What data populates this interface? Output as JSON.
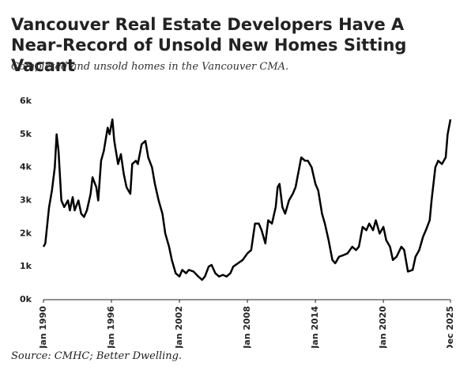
{
  "chart_data": {
    "type": "line",
    "title": "Vancouver Real Estate Developers Have A Near-Record of Unsold New Homes Sitting Vacant",
    "subtitle": "Completed and unsold homes in the Vancouver CMA.",
    "source": "Source: CMHC; Better Dwelling.",
    "color": "#000000",
    "x": [
      "Jan 1990",
      "Mar 1990",
      "Jul 1990",
      "Oct 1990",
      "Jan 1991",
      "Mar 1991",
      "May 1991",
      "Aug 1991",
      "Nov 1991",
      "Mar 1992",
      "May 1992",
      "Aug 1992",
      "Oct 1992",
      "Feb 1993",
      "May 1993",
      "Aug 1993",
      "Nov 1993",
      "Mar 1994",
      "May 1994",
      "Sep 1994",
      "Nov 1994",
      "Feb 1995",
      "May 1995",
      "Sep 1995",
      "Nov 1995",
      "Feb 1996",
      "Apr 1996",
      "Aug 1996",
      "Nov 1996",
      "Feb 1997",
      "May 1997",
      "Sep 1997",
      "Nov 1997",
      "Mar 1998",
      "May 1998",
      "Sep 1998",
      "Jan 1999",
      "Apr 1999",
      "Aug 1999",
      "Nov 1999",
      "Mar 2000",
      "Jul 2000",
      "Oct 2000",
      "Feb 2001",
      "May 2001",
      "Sep 2001",
      "Jan 2002",
      "Apr 2002",
      "Aug 2002",
      "Nov 2002",
      "Apr 2003",
      "Sep 2003",
      "Jan 2004",
      "Apr 2004",
      "Aug 2004",
      "Nov 2004",
      "Mar 2005",
      "Jul 2005",
      "Nov 2005",
      "Mar 2006",
      "Jul 2006",
      "Oct 2006",
      "Mar 2007",
      "Aug 2007",
      "Jan 2008",
      "May 2008",
      "Sep 2008",
      "Jan 2009",
      "Apr 2009",
      "Aug 2009",
      "Nov 2009",
      "Mar 2010",
      "Jul 2010",
      "Sep 2010",
      "Nov 2010",
      "Feb 2011",
      "May 2011",
      "Sep 2011",
      "Jan 2012",
      "Apr 2012",
      "Aug 2012",
      "Oct 2012",
      "Feb 2013",
      "May 2013",
      "Sep 2013",
      "Jan 2014",
      "Apr 2014",
      "Aug 2014",
      "Nov 2014",
      "Mar 2015",
      "Jul 2015",
      "Oct 2015",
      "Feb 2016",
      "Jul 2016",
      "Nov 2016",
      "Apr 2017",
      "Aug 2017",
      "Nov 2017",
      "Mar 2018",
      "Jul 2018",
      "Oct 2018",
      "Feb 2019",
      "May 2019",
      "Sep 2019",
      "Jan 2020",
      "Apr 2020",
      "Aug 2020",
      "Nov 2020",
      "Mar 2021",
      "Aug 2021",
      "Nov 2021",
      "Mar 2022",
      "Aug 2022",
      "Nov 2022",
      "Mar 2023",
      "Jul 2023",
      "Oct 2023",
      "Feb 2024",
      "Apr 2024",
      "Aug 2024",
      "Nov 2024",
      "Mar 2025",
      "Jul 2025",
      "Sep 2025",
      "Dec 2025"
    ],
    "values": [
      1600,
      1700,
      2800,
      3300,
      4000,
      5000,
      4500,
      3000,
      2800,
      3000,
      2700,
      3100,
      2700,
      3000,
      2600,
      2500,
      2700,
      3200,
      3700,
      3400,
      3000,
      4200,
      4500,
      5200,
      5000,
      5450,
      4800,
      4100,
      4400,
      3800,
      3400,
      3200,
      4100,
      4200,
      4100,
      4700,
      4800,
      4300,
      4000,
      3500,
      3000,
      2600,
      2000,
      1600,
      1200,
      800,
      700,
      900,
      800,
      900,
      850,
      700,
      600,
      700,
      1000,
      1050,
      800,
      700,
      750,
      700,
      800,
      1000,
      1100,
      1200,
      1400,
      1500,
      2300,
      2300,
      2100,
      1700,
      2400,
      2300,
      2800,
      3400,
      3500,
      2800,
      2600,
      3000,
      3200,
      3400,
      4000,
      4300,
      4200,
      4200,
      4000,
      3500,
      3300,
      2600,
      2300,
      1800,
      1200,
      1100,
      1300,
      1350,
      1400,
      1600,
      1500,
      1600,
      2200,
      2100,
      2300,
      2100,
      2400,
      2000,
      2200,
      1800,
      1600,
      1200,
      1300,
      1600,
      1500,
      850,
      900,
      1300,
      1500,
      1900,
      2100,
      2400,
      3000,
      4000,
      4200,
      4100,
      4300,
      5000,
      5450
    ],
    "xlim": [
      "Jan 1990",
      "Dec 2025"
    ],
    "xticks": [
      "Jan 1990",
      "Jan 1996",
      "Jan 2002",
      "Jan 2008",
      "Jan 2014",
      "Jan 2020",
      "Dec 2025"
    ],
    "ylim": [
      0,
      6000
    ],
    "yticks": [
      {
        "value": 0,
        "label": "0k"
      },
      {
        "value": 1000,
        "label": "1k"
      },
      {
        "value": 2000,
        "label": "2k"
      },
      {
        "value": 3000,
        "label": "3k"
      },
      {
        "value": 4000,
        "label": "4k"
      },
      {
        "value": 5000,
        "label": "5k"
      },
      {
        "value": 6000,
        "label": "6k"
      }
    ]
  }
}
